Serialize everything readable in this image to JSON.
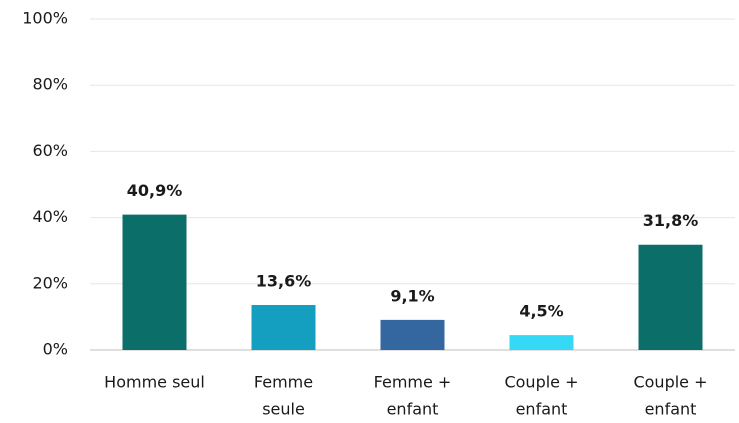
{
  "chart_data": {
    "type": "bar",
    "categories": [
      [
        "Homme seul"
      ],
      [
        "Femme",
        "seule"
      ],
      [
        "Femme +",
        "enfant"
      ],
      [
        "Couple +",
        "enfant"
      ],
      [
        "Couple +",
        "enfant"
      ]
    ],
    "values": [
      40.9,
      13.6,
      9.1,
      4.5,
      31.8
    ],
    "value_labels": [
      "40,9%",
      "13,6%",
      "9,1%",
      "4,5%",
      "31,8%"
    ],
    "colors": [
      "#0c6e69",
      "#149fc0",
      "#34679f",
      "#35d9f6",
      "#0c6e69"
    ],
    "ylim": [
      0,
      100
    ],
    "yticks": [
      {
        "value": 0,
        "label": "0%"
      },
      {
        "value": 20,
        "label": "20%"
      },
      {
        "value": 40,
        "label": "40%"
      },
      {
        "value": 60,
        "label": "60%"
      },
      {
        "value": 80,
        "label": "80%"
      },
      {
        "value": 100,
        "label": "100%"
      }
    ],
    "grid": true
  }
}
